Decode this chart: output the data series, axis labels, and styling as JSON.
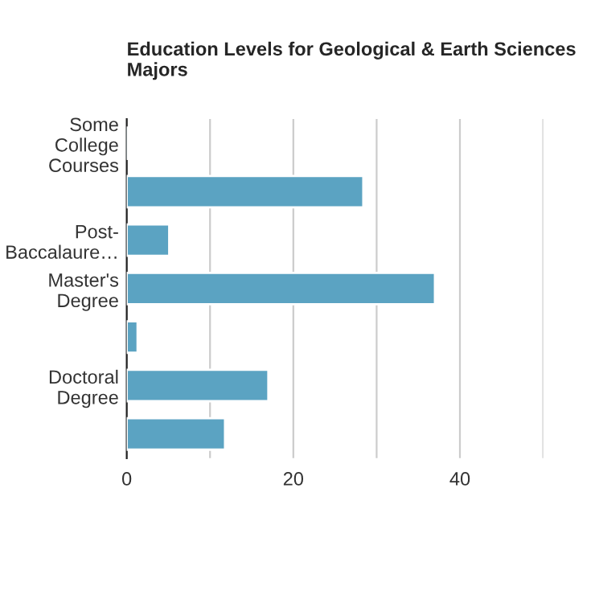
{
  "chart_data": {
    "type": "bar",
    "orientation": "horizontal",
    "title": "Education Levels for Geological & Earth Sciences Majors",
    "categories": [
      "Some College Courses",
      null,
      "Post-Baccalaure…",
      "Master's Degree",
      null,
      "Doctoral Degree",
      null
    ],
    "values": [
      0.1,
      28.4,
      5.1,
      37.0,
      1.3,
      17.0,
      11.8
    ],
    "color": "#5ba3c2",
    "xlim": [
      0,
      50
    ],
    "xticks": [
      0,
      {
        "value": 10,
        "label": null
      },
      20,
      {
        "value": 30,
        "label": null
      },
      40,
      {
        "value": 50,
        "label": null
      }
    ],
    "grid": "x",
    "legend": false
  }
}
